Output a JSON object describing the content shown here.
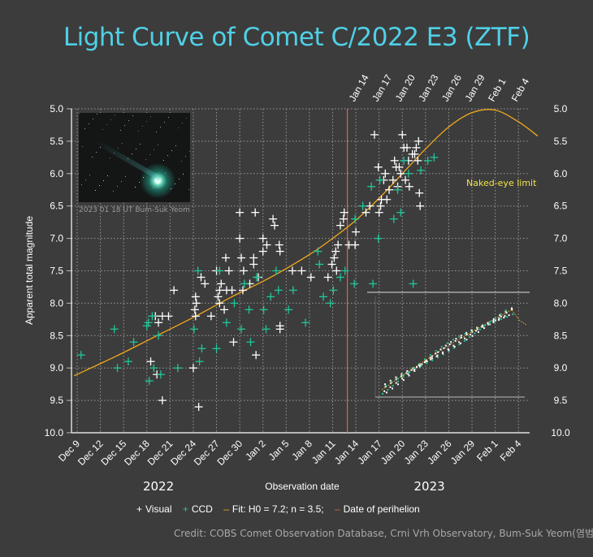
{
  "header": {
    "title": "Light Curve of Comet C/2022 E3 (ZTF)"
  },
  "photo": {
    "caption": "2023 01 18 UT  Bum-Suk Yeom",
    "icon": "comet-photo"
  },
  "annotations": {
    "naked_eye_limit": "Naked-eye limit"
  },
  "legend": {
    "visual": "Visual",
    "ccd": "CCD",
    "fit": "Fit: H0 = 7.2; n = 3.5;",
    "perihelion": "Date of perihelion"
  },
  "credit": "Credit: COBS Comet Observation Database, Crni Vrh Observatory, Bum-Suk Yeom(염범석)",
  "colors": {
    "title": "#4fd0e6",
    "visual": "#ffffff",
    "ccd": "#1fc79a",
    "fit": "#f0a81c",
    "perihelion": "#e8604a",
    "naked_eye": "#f1e34a",
    "background": "#3c3c3c"
  },
  "chart_data": {
    "type": "scatter",
    "title": "Light Curve of Comet C/2022 E3 (ZTF)",
    "xlabel": "Observation date",
    "ylabel": "Apparent total magnitude",
    "x_unit": "days since Dec 9, 2022",
    "xlim": [
      -0.4,
      60
    ],
    "ylim": [
      10.0,
      5.0
    ],
    "y_inverted": true,
    "grid": true,
    "legend_position": "bottom",
    "year_labels": [
      {
        "label": "2022",
        "x": 10.5
      },
      {
        "label": "2023",
        "x": 45.5
      }
    ],
    "x_ticks_bottom": [
      {
        "x": 0,
        "label": "Dec 9"
      },
      {
        "x": 3,
        "label": "Dec 12"
      },
      {
        "x": 6,
        "label": "Dec 15"
      },
      {
        "x": 9,
        "label": "Dec 18"
      },
      {
        "x": 12,
        "label": "Dec 21"
      },
      {
        "x": 15,
        "label": "Dec 24"
      },
      {
        "x": 18,
        "label": "Dec 27"
      },
      {
        "x": 21,
        "label": "Dec 30"
      },
      {
        "x": 24,
        "label": "Jan 2"
      },
      {
        "x": 27,
        "label": "Jan 5"
      },
      {
        "x": 30,
        "label": "Jan 8"
      },
      {
        "x": 33,
        "label": "Jan 11"
      },
      {
        "x": 36,
        "label": "Jan 14"
      },
      {
        "x": 39,
        "label": "Jan 17"
      },
      {
        "x": 42,
        "label": "Jan 20"
      },
      {
        "x": 45,
        "label": "Jan 23"
      },
      {
        "x": 48,
        "label": "Jan 26"
      },
      {
        "x": 51,
        "label": "Jan 29"
      },
      {
        "x": 54,
        "label": "Feb 1"
      },
      {
        "x": 57,
        "label": "Feb 4"
      }
    ],
    "x_ticks_top": [
      {
        "x": 36,
        "label": "Jan 14"
      },
      {
        "x": 39,
        "label": "Jan 17"
      },
      {
        "x": 42,
        "label": "Jan 20"
      },
      {
        "x": 45,
        "label": "Jan 23"
      },
      {
        "x": 48,
        "label": "Jan 26"
      },
      {
        "x": 51,
        "label": "Jan 29"
      },
      {
        "x": 54,
        "label": "Feb 1"
      },
      {
        "x": 57,
        "label": "Feb 4"
      }
    ],
    "y_ticks": [
      "5.0",
      "5.5",
      "6.0",
      "6.5",
      "7.0",
      "7.5",
      "8.0",
      "8.5",
      "9.0",
      "9.5",
      "10.0"
    ],
    "perihelion_x": 34.9,
    "naked_eye_limit_mag": 6.0,
    "fit": {
      "name": "Fit: H0 = 7.2; n = 3.5;",
      "points": [
        [
          -0.4,
          9.12
        ],
        [
          5,
          8.82
        ],
        [
          10,
          8.52
        ],
        [
          15,
          8.22
        ],
        [
          20,
          7.9
        ],
        [
          25,
          7.6
        ],
        [
          30,
          7.25
        ],
        [
          33,
          7.0
        ],
        [
          36,
          6.72
        ],
        [
          39,
          6.38
        ],
        [
          42,
          6.0
        ],
        [
          45,
          5.62
        ],
        [
          48,
          5.28
        ],
        [
          51,
          5.06
        ],
        [
          54,
          5.02
        ],
        [
          57,
          5.2
        ],
        [
          59.5,
          5.42
        ]
      ]
    },
    "series": [
      {
        "name": "Visual",
        "points": [
          [
            9.5,
            8.9
          ],
          [
            10.3,
            9.1
          ],
          [
            10.1,
            8.2
          ],
          [
            10.5,
            8.3
          ],
          [
            11,
            8.2
          ],
          [
            11,
            9.5
          ],
          [
            11.8,
            8.2
          ],
          [
            12.5,
            7.8
          ],
          [
            15,
            9.0
          ],
          [
            15.2,
            8.1
          ],
          [
            15.3,
            8.2
          ],
          [
            15.4,
            8.0
          ],
          [
            15.3,
            7.9
          ],
          [
            15.7,
            9.6
          ],
          [
            16,
            7.6
          ],
          [
            16.5,
            7.7
          ],
          [
            17.3,
            8.2
          ],
          [
            18,
            7.5
          ],
          [
            18.4,
            7.8
          ],
          [
            18.2,
            7.9
          ],
          [
            18.4,
            8.0
          ],
          [
            18.6,
            7.7
          ],
          [
            19,
            8.1
          ],
          [
            19.2,
            7.3
          ],
          [
            19.6,
            7.5
          ],
          [
            19.3,
            7.8
          ],
          [
            20,
            7.8
          ],
          [
            20.2,
            8.6
          ],
          [
            21,
            6.6
          ],
          [
            21,
            7.0
          ],
          [
            21.2,
            7.3
          ],
          [
            21.5,
            7.5
          ],
          [
            21.4,
            7.8
          ],
          [
            22.3,
            7.7
          ],
          [
            22.8,
            7.3
          ],
          [
            22.8,
            7.4
          ],
          [
            23,
            6.6
          ],
          [
            23.4,
            7.6
          ],
          [
            23.1,
            8.8
          ],
          [
            24,
            7.2
          ],
          [
            24,
            7.0
          ],
          [
            24.5,
            7.1
          ],
          [
            25.3,
            6.7
          ],
          [
            25.5,
            6.8
          ],
          [
            26.1,
            7.1
          ],
          [
            26.2,
            7.2
          ],
          [
            26.2,
            8.35
          ],
          [
            26.2,
            8.4
          ],
          [
            27.8,
            7.5
          ],
          [
            29,
            7.5
          ],
          [
            30.2,
            7.6
          ],
          [
            32.4,
            7.6
          ],
          [
            32.9,
            7.4
          ],
          [
            33.2,
            7.3
          ],
          [
            33.4,
            7.2
          ],
          [
            33.5,
            7.5
          ],
          [
            33.7,
            7.1
          ],
          [
            34,
            6.8
          ],
          [
            34.4,
            6.7
          ],
          [
            34.5,
            6.6
          ],
          [
            35.1,
            7.1
          ],
          [
            35.9,
            7.1
          ],
          [
            36,
            6.9
          ],
          [
            37.3,
            6.6
          ],
          [
            37.8,
            6.5
          ],
          [
            38.4,
            5.4
          ],
          [
            38.9,
            5.9
          ],
          [
            39,
            6.6
          ],
          [
            39.2,
            6.5
          ],
          [
            39.3,
            6.4
          ],
          [
            39.6,
            6.1
          ],
          [
            39.8,
            6.0
          ],
          [
            40,
            6.4
          ],
          [
            40.3,
            6.25
          ],
          [
            40.8,
            6.1
          ],
          [
            41,
            5.8
          ],
          [
            41.2,
            5.9
          ],
          [
            41.4,
            6.2
          ],
          [
            41.6,
            5.9
          ],
          [
            41.8,
            6.0
          ],
          [
            42,
            5.4
          ],
          [
            42.2,
            5.6
          ],
          [
            42.4,
            6.1
          ],
          [
            42.6,
            5.6
          ],
          [
            42.8,
            5.8
          ],
          [
            42.9,
            6.2
          ],
          [
            43.3,
            5.7
          ],
          [
            43.6,
            5.7
          ],
          [
            43.8,
            5.6
          ],
          [
            44,
            5.8
          ],
          [
            44.1,
            5.5
          ],
          [
            44.2,
            6.3
          ],
          [
            44.3,
            6.5
          ]
        ]
      },
      {
        "name": "CCD",
        "points": [
          [
            0.5,
            8.8
          ],
          [
            4.8,
            8.4
          ],
          [
            5.2,
            9.0
          ],
          [
            6.6,
            8.9
          ],
          [
            7.3,
            8.6
          ],
          [
            9,
            8.35
          ],
          [
            9.3,
            9.2
          ],
          [
            9.2,
            8.3
          ],
          [
            9.7,
            8.2
          ],
          [
            9.9,
            9.0
          ],
          [
            10.5,
            8.5
          ],
          [
            10.8,
            9.1
          ],
          [
            13,
            9.0
          ],
          [
            15.1,
            8.4
          ],
          [
            15.6,
            7.5
          ],
          [
            15.8,
            8.9
          ],
          [
            16.1,
            8.7
          ],
          [
            18,
            8.7
          ],
          [
            18.4,
            7.5
          ],
          [
            19.3,
            8.3
          ],
          [
            20.3,
            8.0
          ],
          [
            21.2,
            8.4
          ],
          [
            21.6,
            7.7
          ],
          [
            22.2,
            8.1
          ],
          [
            22.4,
            8.6
          ],
          [
            23.2,
            7.6
          ],
          [
            24.1,
            8.1
          ],
          [
            24.4,
            8.4
          ],
          [
            25,
            7.9
          ],
          [
            25.7,
            7.5
          ],
          [
            26,
            7.8
          ],
          [
            27.3,
            8.1
          ],
          [
            27.9,
            7.8
          ],
          [
            29.5,
            8.3
          ],
          [
            31.1,
            7.2
          ],
          [
            31.3,
            7.4
          ],
          [
            31.8,
            7.9
          ],
          [
            32.7,
            8.0
          ],
          [
            33.1,
            7.8
          ],
          [
            34,
            7.6
          ],
          [
            34.6,
            7.5
          ],
          [
            35.8,
            7.7
          ],
          [
            35.9,
            6.7
          ],
          [
            36.9,
            6.5
          ],
          [
            38,
            6.2
          ],
          [
            38.2,
            7.7
          ],
          [
            38.9,
            7.0
          ],
          [
            39.1,
            6.1
          ],
          [
            40.9,
            6.7
          ],
          [
            41.4,
            6.25
          ],
          [
            41.8,
            6.6
          ],
          [
            42.2,
            5.8
          ],
          [
            42.8,
            6.0
          ],
          [
            43.4,
            7.7
          ],
          [
            44.4,
            5.95
          ],
          [
            45.3,
            5.8
          ],
          [
            46.1,
            5.75
          ]
        ]
      }
    ]
  }
}
